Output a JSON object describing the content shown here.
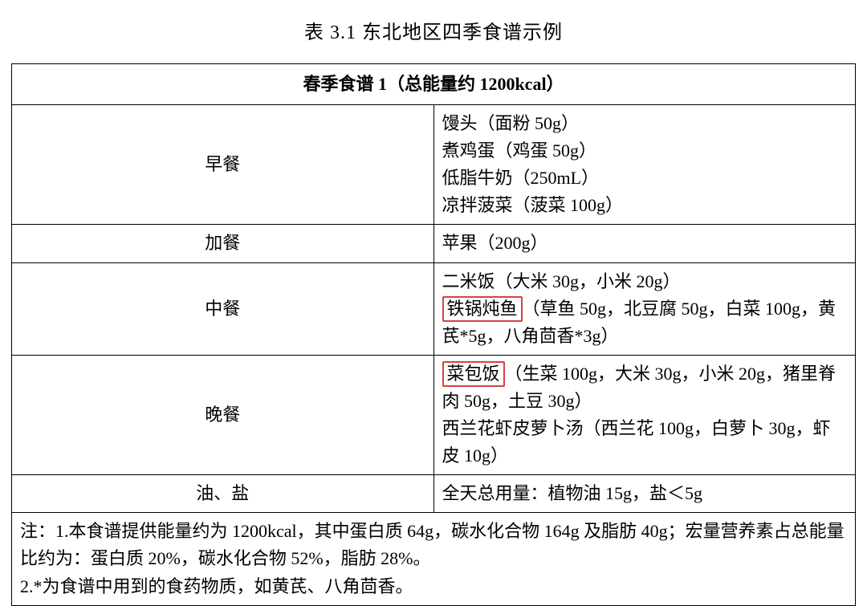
{
  "caption": "表 3.1  东北地区四季食谱示例",
  "title": "春季食谱 1（总能量约 1200kcal）",
  "highlight_color": "#d9413e",
  "rows": [
    {
      "meal": "早餐",
      "lines": [
        {
          "pre": "",
          "hl": "",
          "post": "馒头（面粉 50g）"
        },
        {
          "pre": "",
          "hl": "",
          "post": "煮鸡蛋（鸡蛋 50g）"
        },
        {
          "pre": "",
          "hl": "",
          "post": "低脂牛奶（250mL）"
        },
        {
          "pre": "",
          "hl": "",
          "post": "凉拌菠菜（菠菜 100g）"
        }
      ]
    },
    {
      "meal": "加餐",
      "lines": [
        {
          "pre": "",
          "hl": "",
          "post": "苹果（200g）"
        }
      ]
    },
    {
      "meal": "中餐",
      "lines": [
        {
          "pre": "",
          "hl": "",
          "post": "二米饭（大米 30g，小米 20g）"
        },
        {
          "pre": "",
          "hl": "铁锅炖鱼",
          "post": "（草鱼 50g，北豆腐 50g，白菜 100g，黄芪*5g，八角茴香*3g）"
        }
      ]
    },
    {
      "meal": "晚餐",
      "lines": [
        {
          "pre": "",
          "hl": "菜包饭",
          "post": "（生菜 100g，大米 30g，小米 20g，猪里脊肉 50g，土豆 30g）"
        },
        {
          "pre": "",
          "hl": "",
          "post": "西兰花虾皮萝卜汤（西兰花 100g，白萝卜 30g，虾皮 10g）"
        }
      ]
    },
    {
      "meal": "油、盐",
      "lines": [
        {
          "pre": "",
          "hl": "",
          "post": "全天总用量：植物油 15g，盐＜5g"
        }
      ]
    }
  ],
  "notes": [
    "注：1.本食谱提供能量约为 1200kcal，其中蛋白质 64g，碳水化合物 164g 及脂肪 40g；宏量营养素占总能量比约为：蛋白质 20%，碳水化合物 52%，脂肪 28%。",
    "2.*为食谱中用到的食药物质，如黄芪、八角茴香。"
  ]
}
